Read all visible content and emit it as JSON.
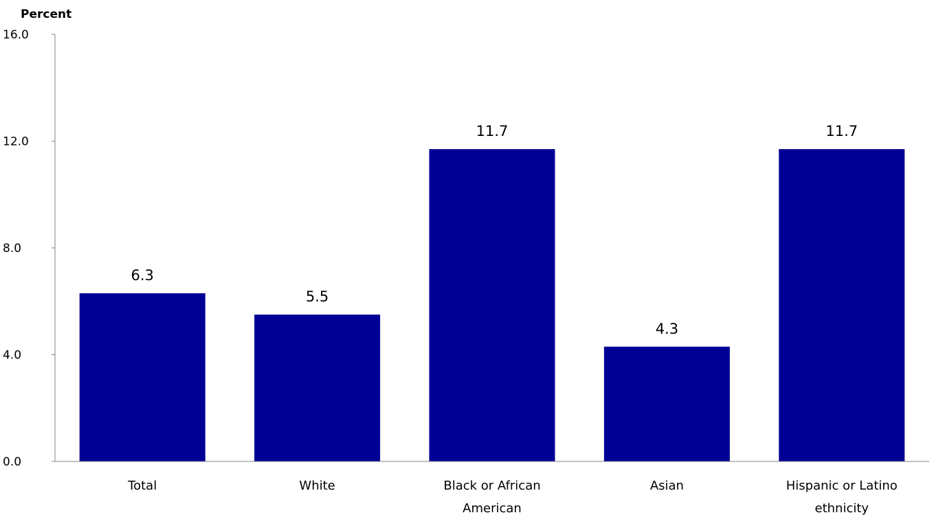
{
  "chart_data": {
    "type": "bar",
    "ylabel": "Percent",
    "xlabel": "",
    "title": "",
    "categories": [
      [
        "Total"
      ],
      [
        "White"
      ],
      [
        "Black or African",
        "American"
      ],
      [
        "Asian"
      ],
      [
        "Hispanic or Latino",
        "ethnicity"
      ]
    ],
    "values": [
      6.3,
      5.5,
      11.7,
      4.3,
      11.7
    ],
    "value_labels": [
      "6.3",
      "5.5",
      "11.7",
      "4.3",
      "11.7"
    ],
    "ylim": [
      0,
      16
    ],
    "yticks": [
      0,
      4,
      8,
      12,
      16
    ],
    "ytick_labels": [
      "0.0",
      "4.0",
      "8.0",
      "12.0",
      "16.0"
    ],
    "grid": false,
    "legend": "none",
    "bar_color": "#000094",
    "axis_color": "#808080"
  }
}
